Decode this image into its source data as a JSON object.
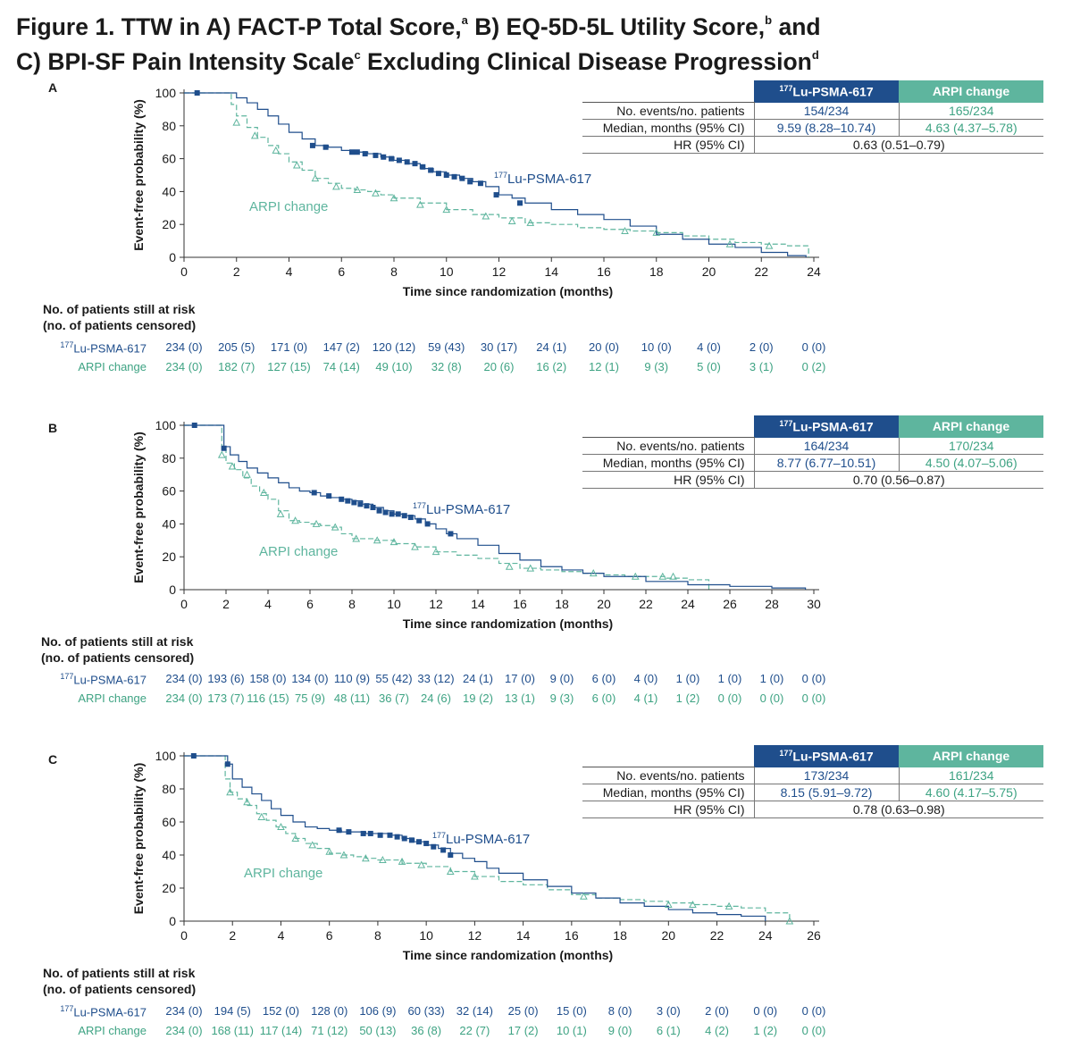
{
  "figure": {
    "title_line1": "Figure 1. TTW in A) FACT-P Total Score,",
    "sup_a": "a",
    "title_mid1": " B) EQ-5D-5L Utility Score,",
    "sup_b": "b",
    "title_mid2": " and",
    "title_line2": "C) BPI-SF Pain Intensity Scale",
    "sup_c": "c",
    "title_mid3": " Excluding Clinical Disease Progression",
    "sup_d": "d"
  },
  "legend": {
    "lu_sup": "177",
    "lu_name": "Lu-PSMA-617",
    "arpi_name": "ARPI change",
    "col_lu_sup": "177",
    "col_lu": "Lu-PSMA-617",
    "col_arpi": "ARPI change"
  },
  "labels": {
    "row_events": "No. events/no. patients",
    "row_median": "Median, months (95% CI)",
    "row_hr": "HR (95% CI)",
    "risk_head1": "No. of patients still at risk",
    "risk_head2": "(no. of patients censored)",
    "risk_lu_sup": "177",
    "risk_lu": "Lu-PSMA-617",
    "risk_arpi": "ARPI change"
  },
  "colors": {
    "lu": "#1f4e8c",
    "arpi": "#5eb59e"
  },
  "chart_data": [
    {
      "panel": "A",
      "type": "line",
      "xlabel": "Time since randomization (months)",
      "ylabel": "Event-free probability (%)",
      "xlim": [
        0,
        24
      ],
      "ylim": [
        0,
        100
      ],
      "xticks": [
        0,
        2,
        4,
        6,
        8,
        10,
        12,
        14,
        16,
        18,
        20,
        22,
        24
      ],
      "yticks": [
        0,
        20,
        40,
        60,
        80,
        100
      ],
      "series": [
        {
          "name": "177Lu-PSMA-617",
          "x": [
            0,
            1.8,
            2.0,
            2.4,
            2.8,
            3.2,
            3.6,
            4.0,
            4.5,
            5.0,
            5.5,
            6.0,
            6.5,
            7.0,
            7.5,
            8.0,
            8.5,
            9.0,
            9.5,
            10.0,
            10.5,
            11.0,
            11.5,
            12.0,
            12.5,
            13.0,
            14.0,
            15.0,
            16.0,
            17.0,
            18.0,
            19.0,
            20.0,
            21.0,
            22.0,
            23.0,
            23.7
          ],
          "y": [
            100,
            100,
            97,
            94,
            90,
            86,
            81,
            76,
            72,
            68,
            67,
            65,
            64,
            63,
            61,
            59,
            57,
            54,
            52,
            50,
            48,
            46,
            43,
            38,
            36,
            33,
            29,
            26,
            23,
            19,
            14,
            11,
            8,
            6,
            3,
            1,
            0
          ]
        },
        {
          "name": "ARPI change",
          "x": [
            0,
            1.6,
            1.8,
            2.0,
            2.4,
            2.8,
            3.2,
            3.6,
            4.0,
            4.5,
            5.0,
            5.5,
            6.0,
            6.5,
            7.0,
            7.5,
            8.0,
            9.0,
            10.0,
            11.0,
            12.0,
            13.0,
            14.0,
            15.0,
            16.0,
            17.0,
            18.0,
            19.0,
            20.0,
            21.0,
            22.0,
            23.0,
            23.8
          ],
          "y": [
            100,
            100,
            93,
            86,
            79,
            73,
            68,
            63,
            58,
            53,
            48,
            45,
            42,
            41,
            40,
            38,
            36,
            33,
            29,
            26,
            24,
            21,
            20,
            18,
            17,
            16,
            15,
            13,
            11,
            9,
            8,
            7,
            0
          ]
        }
      ],
      "censor_lu": [
        [
          0.5,
          100
        ],
        [
          4.9,
          68
        ],
        [
          5.4,
          67
        ],
        [
          6.4,
          64
        ],
        [
          6.6,
          64
        ],
        [
          6.9,
          63
        ],
        [
          7.3,
          62
        ],
        [
          7.6,
          61
        ],
        [
          7.9,
          60
        ],
        [
          8.2,
          59
        ],
        [
          8.5,
          58
        ],
        [
          8.8,
          57
        ],
        [
          9.1,
          55
        ],
        [
          9.4,
          53
        ],
        [
          9.7,
          51
        ],
        [
          10.0,
          50
        ],
        [
          10.3,
          49
        ],
        [
          10.6,
          48
        ],
        [
          10.9,
          46
        ],
        [
          11.3,
          45
        ],
        [
          11.9,
          38
        ],
        [
          12.8,
          33
        ]
      ],
      "censor_arpi": [
        [
          2.0,
          82
        ],
        [
          2.7,
          74
        ],
        [
          3.5,
          65
        ],
        [
          4.3,
          56
        ],
        [
          5.0,
          48
        ],
        [
          5.8,
          43
        ],
        [
          6.6,
          41
        ],
        [
          7.3,
          39
        ],
        [
          8.0,
          36
        ],
        [
          9.0,
          32
        ],
        [
          10.0,
          29
        ],
        [
          11.5,
          25
        ],
        [
          12.5,
          22
        ],
        [
          13.2,
          21
        ],
        [
          16.8,
          16
        ],
        [
          18.0,
          15
        ],
        [
          20.8,
          8
        ],
        [
          22.3,
          7
        ]
      ],
      "stats": {
        "lu_events": "154/234",
        "arpi_events": "165/234",
        "lu_median": "9.59 (8.28–10.74)",
        "arpi_median": "4.63 (4.37–5.78)",
        "hr": "0.63 (0.51–0.79)"
      },
      "risk_x": [
        0,
        2,
        4,
        6,
        8,
        10,
        12,
        14,
        16,
        18,
        20,
        22,
        24
      ],
      "risk_lu": [
        "234 (0)",
        "205 (5)",
        "171 (0)",
        "147 (2)",
        "120 (12)",
        "59 (43)",
        "30 (17)",
        "24 (1)",
        "20 (0)",
        "10 (0)",
        "4 (0)",
        "2 (0)",
        "0 (0)"
      ],
      "risk_arpi": [
        "234 (0)",
        "182 (7)",
        "127 (15)",
        "74 (14)",
        "49 (10)",
        "32 (8)",
        "20 (6)",
        "16 (2)",
        "12 (1)",
        "9 (3)",
        "5 (0)",
        "3 (1)",
        "0 (2)"
      ]
    },
    {
      "panel": "B",
      "type": "line",
      "xlabel": "Time since randomization (months)",
      "ylabel": "Event-free probability (%)",
      "xlim": [
        0,
        30
      ],
      "ylim": [
        0,
        100
      ],
      "xticks": [
        0,
        2,
        4,
        6,
        8,
        10,
        12,
        14,
        16,
        18,
        20,
        22,
        24,
        26,
        28,
        30
      ],
      "yticks": [
        0,
        20,
        40,
        60,
        80,
        100
      ],
      "series": [
        {
          "name": "177Lu-PSMA-617",
          "x": [
            0,
            1.7,
            1.9,
            2.2,
            2.6,
            3.0,
            3.5,
            4.0,
            4.5,
            5.0,
            5.5,
            6.0,
            6.5,
            7.0,
            7.5,
            8.0,
            8.5,
            9.0,
            9.5,
            10.0,
            10.5,
            11.0,
            11.5,
            12.0,
            12.5,
            13.0,
            14.0,
            15.0,
            16.0,
            17.0,
            18.0,
            19.0,
            20.0,
            22.0,
            24.0,
            26.0,
            28.0,
            29.6
          ],
          "y": [
            100,
            100,
            87,
            82,
            78,
            74,
            71,
            68,
            65,
            62,
            60,
            59,
            57,
            56,
            55,
            54,
            52,
            50,
            48,
            46,
            45,
            43,
            40,
            37,
            34,
            31,
            27,
            22,
            18,
            14,
            12,
            10,
            8,
            5,
            3,
            2,
            1,
            0
          ]
        },
        {
          "name": "ARPI change",
          "x": [
            0,
            1.6,
            1.8,
            2.0,
            2.4,
            2.8,
            3.2,
            3.6,
            4.0,
            4.5,
            5.0,
            5.5,
            6.0,
            6.5,
            7.0,
            7.5,
            8.0,
            9.0,
            10.0,
            11.0,
            12.0,
            13.0,
            14.0,
            15.0,
            16.0,
            17.0,
            18.0,
            19.0,
            20.0,
            21.0,
            22.0,
            23.0,
            24.0,
            25.0
          ],
          "y": [
            100,
            100,
            85,
            77,
            73,
            68,
            63,
            59,
            55,
            48,
            42,
            41,
            40,
            39,
            38,
            34,
            31,
            30,
            28,
            26,
            23,
            21,
            19,
            16,
            13,
            12,
            11,
            10,
            9,
            8,
            8,
            7,
            6,
            0
          ]
        }
      ],
      "censor_lu": [
        [
          0.5,
          100
        ],
        [
          1.9,
          86
        ],
        [
          6.2,
          59
        ],
        [
          6.9,
          57
        ],
        [
          7.5,
          55
        ],
        [
          7.8,
          54
        ],
        [
          8.1,
          53
        ],
        [
          8.4,
          52
        ],
        [
          8.7,
          51
        ],
        [
          9.0,
          50
        ],
        [
          9.3,
          48
        ],
        [
          9.6,
          47
        ],
        [
          9.9,
          46
        ],
        [
          10.2,
          46
        ],
        [
          10.5,
          45
        ],
        [
          10.8,
          44
        ],
        [
          11.2,
          42
        ],
        [
          11.6,
          40
        ],
        [
          12.7,
          34
        ]
      ],
      "censor_arpi": [
        [
          1.8,
          82
        ],
        [
          2.3,
          75
        ],
        [
          3.0,
          70
        ],
        [
          3.8,
          59
        ],
        [
          4.6,
          46
        ],
        [
          5.3,
          42
        ],
        [
          6.3,
          40
        ],
        [
          7.2,
          38
        ],
        [
          8.2,
          31
        ],
        [
          9.2,
          30
        ],
        [
          10.0,
          29
        ],
        [
          11.0,
          26
        ],
        [
          12.0,
          23
        ],
        [
          15.5,
          14
        ],
        [
          16.5,
          13
        ],
        [
          19.5,
          10
        ],
        [
          21.5,
          8
        ],
        [
          22.8,
          8
        ],
        [
          23.3,
          8
        ]
      ],
      "stats": {
        "lu_events": "164/234",
        "arpi_events": "170/234",
        "lu_median": "8.77 (6.77–10.51)",
        "arpi_median": "4.50 (4.07–5.06)",
        "hr": "0.70 (0.56–0.87)"
      },
      "risk_x": [
        0,
        2,
        4,
        6,
        8,
        10,
        12,
        14,
        16,
        18,
        20,
        22,
        24,
        26,
        28,
        30
      ],
      "risk_lu": [
        "234 (0)",
        "193 (6)",
        "158 (0)",
        "134 (0)",
        "110 (9)",
        "55 (42)",
        "33 (12)",
        "24 (1)",
        "17 (0)",
        "9 (0)",
        "6 (0)",
        "4 (0)",
        "1 (0)",
        "1 (0)",
        "1 (0)",
        "0 (0)"
      ],
      "risk_arpi": [
        "234 (0)",
        "173 (7)",
        "116 (15)",
        "75 (9)",
        "48 (11)",
        "36 (7)",
        "24 (6)",
        "19 (2)",
        "13 (1)",
        "9 (3)",
        "6 (0)",
        "4 (1)",
        "1 (2)",
        "0 (0)",
        "0 (0)",
        "0 (0)"
      ]
    },
    {
      "panel": "C",
      "type": "line",
      "xlabel": "Time since randomization (months)",
      "ylabel": "Event-free probability (%)",
      "xlim": [
        0,
        26
      ],
      "ylim": [
        0,
        100
      ],
      "xticks": [
        0,
        2,
        4,
        6,
        8,
        10,
        12,
        14,
        16,
        18,
        20,
        22,
        24,
        26
      ],
      "yticks": [
        0,
        20,
        40,
        60,
        80,
        100
      ],
      "series": [
        {
          "name": "177Lu-PSMA-617",
          "x": [
            0,
            1.6,
            1.8,
            2.0,
            2.4,
            2.8,
            3.2,
            3.6,
            4.0,
            4.5,
            5.0,
            5.5,
            6.0,
            6.5,
            7.0,
            7.5,
            8.0,
            8.5,
            9.0,
            9.5,
            10.0,
            10.5,
            11.0,
            11.5,
            12.0,
            12.5,
            13.0,
            14.0,
            15.0,
            16.0,
            17.0,
            18.0,
            19.0,
            20.0,
            21.0,
            22.0,
            23.0,
            24.0
          ],
          "y": [
            100,
            100,
            95,
            86,
            81,
            77,
            73,
            68,
            64,
            60,
            57,
            56,
            55,
            54,
            54,
            53,
            53,
            52,
            50,
            48,
            46,
            44,
            41,
            38,
            36,
            32,
            29,
            25,
            21,
            17,
            14,
            11,
            9,
            7,
            5,
            4,
            3,
            0
          ]
        },
        {
          "name": "ARPI change",
          "x": [
            0,
            1.5,
            1.7,
            1.9,
            2.2,
            2.6,
            3.0,
            3.4,
            3.8,
            4.2,
            4.6,
            5.0,
            5.5,
            6.0,
            6.5,
            7.0,
            7.5,
            8.0,
            9.0,
            10.0,
            11.0,
            12.0,
            13.0,
            14.0,
            15.0,
            16.0,
            17.0,
            18.0,
            19.0,
            20.0,
            21.0,
            22.0,
            23.0,
            24.0,
            25.0
          ],
          "y": [
            100,
            100,
            86,
            78,
            74,
            70,
            65,
            61,
            57,
            53,
            50,
            47,
            44,
            41,
            40,
            39,
            38,
            37,
            35,
            33,
            30,
            27,
            24,
            22,
            19,
            16,
            14,
            13,
            12,
            11,
            10,
            9,
            8,
            5,
            0
          ]
        }
      ],
      "censor_lu": [
        [
          0.4,
          100
        ],
        [
          1.8,
          95
        ],
        [
          6.4,
          55
        ],
        [
          6.8,
          54
        ],
        [
          7.4,
          53
        ],
        [
          7.7,
          53
        ],
        [
          8.1,
          52
        ],
        [
          8.5,
          52
        ],
        [
          8.8,
          51
        ],
        [
          9.1,
          50
        ],
        [
          9.4,
          49
        ],
        [
          9.7,
          48
        ],
        [
          10.0,
          47
        ],
        [
          10.3,
          45
        ],
        [
          10.7,
          43
        ],
        [
          11.0,
          40
        ]
      ],
      "censor_arpi": [
        [
          1.9,
          78
        ],
        [
          2.6,
          72
        ],
        [
          3.2,
          63
        ],
        [
          4.0,
          57
        ],
        [
          4.6,
          50
        ],
        [
          5.3,
          46
        ],
        [
          6.0,
          42
        ],
        [
          6.6,
          40
        ],
        [
          7.5,
          38
        ],
        [
          8.2,
          37
        ],
        [
          9.0,
          36
        ],
        [
          9.8,
          34
        ],
        [
          11.0,
          30
        ],
        [
          12.0,
          27
        ],
        [
          16.5,
          15
        ],
        [
          20.0,
          10
        ],
        [
          21.0,
          10
        ],
        [
          22.5,
          9
        ],
        [
          25.0,
          0
        ]
      ],
      "stats": {
        "lu_events": "173/234",
        "arpi_events": "161/234",
        "lu_median": "8.15 (5.91–9.72)",
        "arpi_median": "4.60 (4.17–5.75)",
        "hr": "0.78 (0.63–0.98)"
      },
      "risk_x": [
        0,
        2,
        4,
        6,
        8,
        10,
        12,
        14,
        16,
        18,
        20,
        22,
        24,
        26
      ],
      "risk_lu": [
        "234 (0)",
        "194 (5)",
        "152 (0)",
        "128 (0)",
        "106 (9)",
        "60 (33)",
        "32 (14)",
        "25 (0)",
        "15 (0)",
        "8 (0)",
        "3 (0)",
        "2 (0)",
        "0 (0)",
        "0 (0)"
      ],
      "risk_arpi": [
        "234 (0)",
        "168 (11)",
        "117 (14)",
        "71 (12)",
        "50 (13)",
        "36 (8)",
        "22 (7)",
        "17 (2)",
        "10 (1)",
        "9 (0)",
        "6 (1)",
        "4 (2)",
        "1 (2)",
        "0 (0)"
      ]
    }
  ]
}
